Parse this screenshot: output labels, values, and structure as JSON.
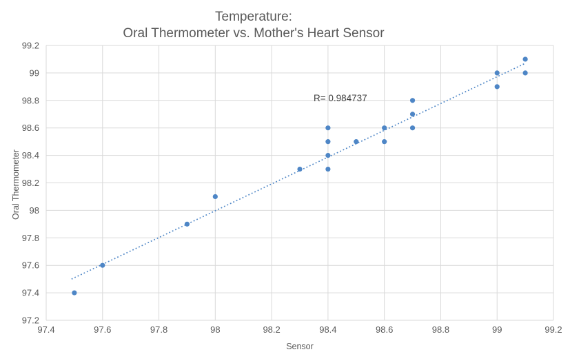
{
  "title": {
    "line1": "Temperature:",
    "line2": "Oral Thermometer vs. Mother's Heart Sensor"
  },
  "chart_data": {
    "type": "scatter",
    "title": "Temperature: Oral Thermometer vs. Mother's Heart Sensor",
    "xlabel": "Sensor",
    "ylabel": "Oral Thermometer",
    "xlim": [
      97.4,
      99.2
    ],
    "ylim": [
      97.2,
      99.2
    ],
    "tick_step": 0.2,
    "grid": true,
    "legend": false,
    "x_tick_labels": [
      "97.4",
      "97.6",
      "97.8",
      "98",
      "98.2",
      "98.4",
      "98.6",
      "98.8",
      "99",
      "99.2"
    ],
    "y_tick_labels": [
      "97.2",
      "97.4",
      "97.6",
      "97.8",
      "98",
      "98.2",
      "98.4",
      "98.6",
      "98.8",
      "99",
      "99.2"
    ],
    "points": [
      [
        97.5,
        97.4
      ],
      [
        97.6,
        97.6
      ],
      [
        97.9,
        97.9
      ],
      [
        98.0,
        98.1
      ],
      [
        98.3,
        98.3
      ],
      [
        98.4,
        98.3
      ],
      [
        98.4,
        98.4
      ],
      [
        98.4,
        98.5
      ],
      [
        98.4,
        98.6
      ],
      [
        98.5,
        98.5
      ],
      [
        98.6,
        98.5
      ],
      [
        98.6,
        98.6
      ],
      [
        98.7,
        98.6
      ],
      [
        98.7,
        98.7
      ],
      [
        98.7,
        98.8
      ],
      [
        99.0,
        98.9
      ],
      [
        99.0,
        99.0
      ],
      [
        99.1,
        99.0
      ],
      [
        99.1,
        99.1
      ]
    ],
    "trendline": {
      "type": "linear",
      "style": "dotted",
      "start": [
        97.49,
        97.5
      ],
      "end": [
        99.1,
        99.07
      ]
    },
    "annotation": {
      "text": "R= 0.984737"
    },
    "colors": {
      "marker": "#4e86c6",
      "trendline": "#4e86c6",
      "gridline": "#d9d9d9",
      "axis_text": "#595959",
      "title_text": "#595959",
      "annotation_text": "#3f3f3f",
      "background": "#ffffff"
    }
  }
}
